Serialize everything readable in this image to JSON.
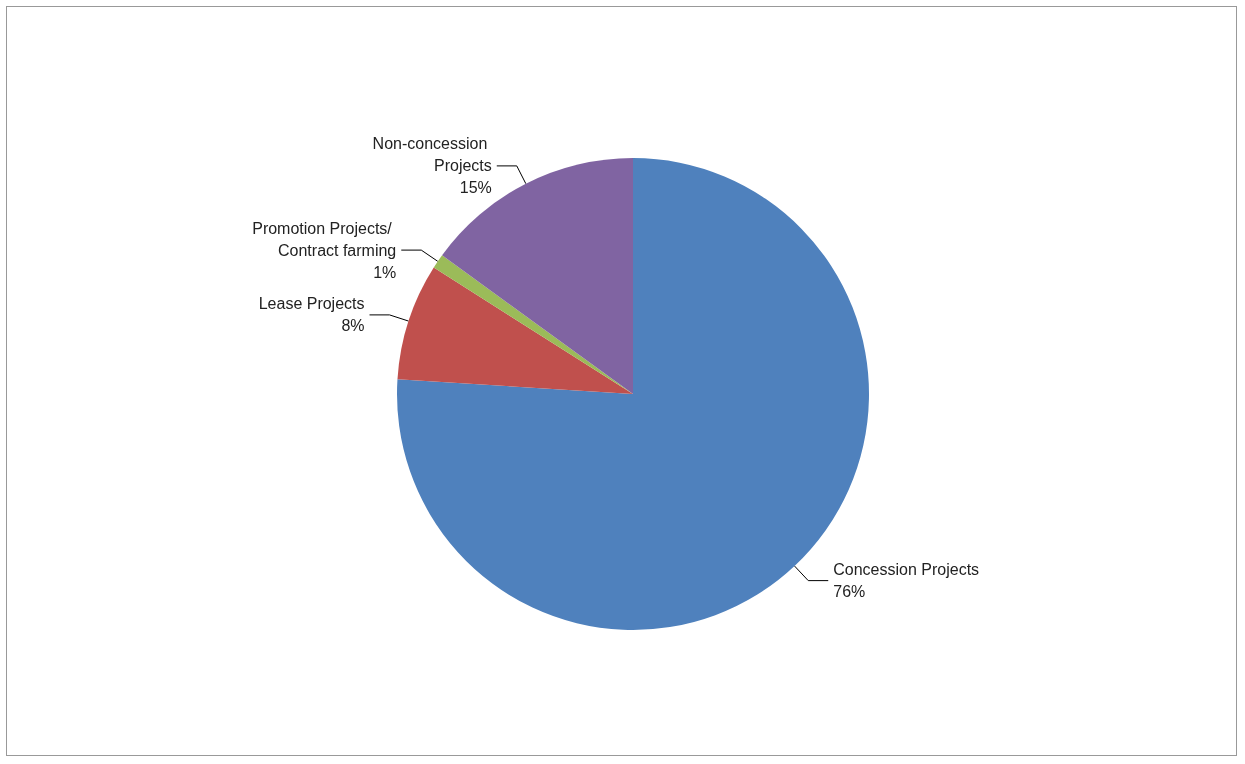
{
  "chart_data": {
    "type": "pie",
    "categories": [
      "Concession Projects",
      "Lease Projects",
      "Promotion Projects/ Contract farming",
      "Non-concession Projects"
    ],
    "values": [
      76,
      8,
      1,
      15
    ],
    "value_labels": [
      "76%",
      "8%",
      "1%",
      "15%"
    ],
    "colors": [
      "#4f81bd",
      "#c0504d",
      "#9bbb59",
      "#8064a2"
    ],
    "legend": false
  }
}
